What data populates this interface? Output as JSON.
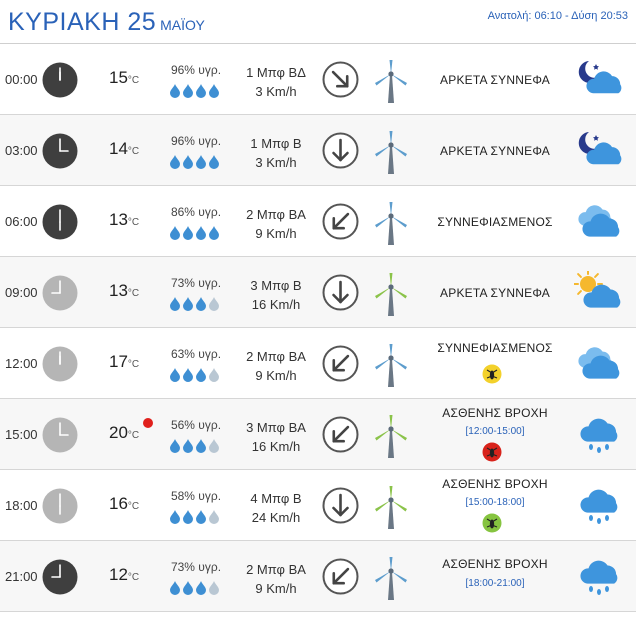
{
  "header": {
    "day": "ΚΥΡΙΑΚΗ 25",
    "month": "ΜΑΪΟΥ",
    "sun_text": "Ανατολή: 06:10  - Δύση 20:53"
  },
  "units": {
    "temp": "°C"
  },
  "colors": {
    "accent": "#2a62b8",
    "clock_night": "#3f3f3f",
    "clock_day": "#b5b5b5",
    "drop_full": "#3e8fd3",
    "drop_empty": "#b9c7d3",
    "heat": "#e0201c"
  },
  "rows": [
    {
      "time": "00:00",
      "clock": "night",
      "temp": "15",
      "heat": false,
      "humidity": "96% υγρ.",
      "drops": 4,
      "wind_bf": "1 Μπφ ΒΔ",
      "wind_kmh": "3 Km/h",
      "wind_dir": "NW",
      "turbine": "blue",
      "condition": "ΑΡΚΕΤΑ ΣΥΝΝΕΦΑ",
      "range": "",
      "bug": "",
      "icon": "moon-cloud-icon"
    },
    {
      "time": "03:00",
      "clock": "night",
      "temp": "14",
      "heat": false,
      "humidity": "96% υγρ.",
      "drops": 4,
      "wind_bf": "1 Μπφ Β",
      "wind_kmh": "3 Km/h",
      "wind_dir": "N",
      "turbine": "blue",
      "condition": "ΑΡΚΕΤΑ ΣΥΝΝΕΦΑ",
      "range": "",
      "bug": "",
      "icon": "moon-cloud-icon"
    },
    {
      "time": "06:00",
      "clock": "night",
      "temp": "13",
      "heat": false,
      "humidity": "86% υγρ.",
      "drops": 4,
      "wind_bf": "2 Μπφ ΒΑ",
      "wind_kmh": "9 Km/h",
      "wind_dir": "NE",
      "turbine": "blue",
      "condition": "ΣΥΝΝΕΦΙΑΣΜΕΝΟΣ",
      "range": "",
      "bug": "",
      "icon": "cloudy-icon"
    },
    {
      "time": "09:00",
      "clock": "day",
      "temp": "13",
      "heat": false,
      "humidity": "73% υγρ.",
      "drops": 3,
      "wind_bf": "3 Μπφ Β",
      "wind_kmh": "16 Km/h",
      "wind_dir": "N",
      "turbine": "green",
      "condition": "ΑΡΚΕΤΑ ΣΥΝΝΕΦΑ",
      "range": "",
      "bug": "",
      "icon": "sun-cloud-icon"
    },
    {
      "time": "12:00",
      "clock": "day",
      "temp": "17",
      "heat": false,
      "humidity": "63% υγρ.",
      "drops": 3,
      "wind_bf": "2 Μπφ ΒΑ",
      "wind_kmh": "9 Km/h",
      "wind_dir": "NE",
      "turbine": "blue",
      "condition": "ΣΥΝΝΕΦΙΑΣΜΕΝΟΣ",
      "range": "",
      "bug": "yellow",
      "icon": "cloudy-icon"
    },
    {
      "time": "15:00",
      "clock": "day",
      "temp": "20",
      "heat": true,
      "humidity": "56% υγρ.",
      "drops": 3,
      "wind_bf": "3 Μπφ ΒΑ",
      "wind_kmh": "16 Km/h",
      "wind_dir": "NE",
      "turbine": "green",
      "condition": "ΑΣΘΕΝΗΣ ΒΡΟΧΗ",
      "range": "[12:00-15:00]",
      "bug": "red",
      "icon": "rain-cloud-icon"
    },
    {
      "time": "18:00",
      "clock": "day",
      "temp": "16",
      "heat": false,
      "humidity": "58% υγρ.",
      "drops": 3,
      "wind_bf": "4 Μπφ Β",
      "wind_kmh": "24 Km/h",
      "wind_dir": "N",
      "turbine": "green",
      "condition": "ΑΣΘΕΝΗΣ ΒΡΟΧΗ",
      "range": "[15:00-18:00]",
      "bug": "green",
      "icon": "rain-cloud-icon"
    },
    {
      "time": "21:00",
      "clock": "night",
      "temp": "12",
      "heat": false,
      "humidity": "73% υγρ.",
      "drops": 3,
      "wind_bf": "2 Μπφ ΒΑ",
      "wind_kmh": "9 Km/h",
      "wind_dir": "NE",
      "turbine": "blue",
      "condition": "ΑΣΘΕΝΗΣ ΒΡΟΧΗ",
      "range": "[18:00-21:00]",
      "bug": "",
      "icon": "rain-cloud-icon"
    }
  ]
}
